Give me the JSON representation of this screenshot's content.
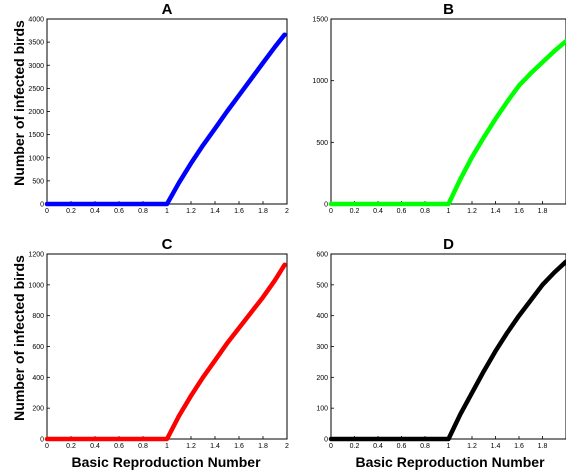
{
  "figure": {
    "ylabel": "Number of infected birds",
    "xlabel": "Basic Reproduction Number"
  },
  "chart_data": [
    {
      "type": "line",
      "title": "A",
      "color": "#0000ff",
      "xlim": [
        0,
        2
      ],
      "ylim": [
        0,
        4000
      ],
      "xticks": [
        "0",
        "0.2",
        "0.4",
        "0.6",
        "0.8",
        "1",
        "1.2",
        "1.4",
        "1.6",
        "1.8",
        "2"
      ],
      "xtick_values": [
        0,
        0.2,
        0.4,
        0.6,
        0.8,
        1,
        1.2,
        1.4,
        1.6,
        1.8,
        2
      ],
      "yticks": [
        "0",
        "500",
        "1000",
        "1500",
        "2000",
        "2500",
        "3000",
        "3500",
        "4000"
      ],
      "ytick_values": [
        0,
        500,
        1000,
        1500,
        2000,
        2500,
        3000,
        3500,
        4000
      ],
      "x": [
        0,
        0.2,
        0.4,
        0.6,
        0.8,
        1.0,
        1.1,
        1.2,
        1.3,
        1.4,
        1.5,
        1.6,
        1.7,
        1.8,
        1.9,
        1.98
      ],
      "y": [
        0,
        0,
        0,
        0,
        0,
        0,
        460,
        880,
        1270,
        1630,
        2000,
        2350,
        2700,
        3050,
        3400,
        3660
      ]
    },
    {
      "type": "line",
      "title": "B",
      "color": "#00ff00",
      "xlim": [
        0,
        2
      ],
      "ylim": [
        0,
        1500
      ],
      "xticks": [
        "0",
        "0.2",
        "0.4",
        "0.6",
        "0.8",
        "1",
        "1.2",
        "1.4",
        "1.6",
        "1.8"
      ],
      "xtick_values": [
        0,
        0.2,
        0.4,
        0.6,
        0.8,
        1,
        1.2,
        1.4,
        1.6,
        1.8
      ],
      "yticks": [
        "0",
        "500",
        "1000",
        "1500"
      ],
      "ytick_values": [
        0,
        500,
        1000,
        1500
      ],
      "x": [
        0,
        0.2,
        0.4,
        0.6,
        0.8,
        1.0,
        1.1,
        1.2,
        1.3,
        1.4,
        1.5,
        1.6,
        1.7,
        1.8,
        1.9,
        2.0
      ],
      "y": [
        0,
        0,
        0,
        0,
        0,
        0,
        200,
        380,
        540,
        690,
        830,
        960,
        1060,
        1150,
        1240,
        1320
      ]
    },
    {
      "type": "line",
      "title": "C",
      "color": "#ff0000",
      "xlim": [
        0,
        2
      ],
      "ylim": [
        0,
        1200
      ],
      "xticks": [
        "0",
        "0.2",
        "0.4",
        "0.6",
        "0.8",
        "1",
        "1.2",
        "1.4",
        "1.6",
        "1.8",
        "2"
      ],
      "xtick_values": [
        0,
        0.2,
        0.4,
        0.6,
        0.8,
        1,
        1.2,
        1.4,
        1.6,
        1.8,
        2
      ],
      "yticks": [
        "0",
        "200",
        "400",
        "600",
        "800",
        "1000",
        "1200"
      ],
      "ytick_values": [
        0,
        200,
        400,
        600,
        800,
        1000,
        1200
      ],
      "x": [
        0,
        0.2,
        0.4,
        0.6,
        0.8,
        1.0,
        1.1,
        1.2,
        1.3,
        1.4,
        1.5,
        1.6,
        1.7,
        1.8,
        1.9,
        1.98
      ],
      "y": [
        0,
        0,
        0,
        0,
        0,
        0,
        150,
        280,
        400,
        510,
        620,
        720,
        820,
        920,
        1030,
        1130
      ]
    },
    {
      "type": "line",
      "title": "D",
      "color": "#000000",
      "xlim": [
        0,
        2
      ],
      "ylim": [
        0,
        600
      ],
      "xticks": [
        "0",
        "0.2",
        "0.4",
        "0.6",
        "0.8",
        "1",
        "1.2",
        "1.4",
        "1.6",
        "1.8"
      ],
      "xtick_values": [
        0,
        0.2,
        0.4,
        0.6,
        0.8,
        1,
        1.2,
        1.4,
        1.6,
        1.8
      ],
      "yticks": [
        "0",
        "100",
        "200",
        "300",
        "400",
        "500",
        "600"
      ],
      "ytick_values": [
        0,
        100,
        200,
        300,
        400,
        500,
        600
      ],
      "x": [
        0,
        0.2,
        0.4,
        0.6,
        0.8,
        1.0,
        1.1,
        1.2,
        1.3,
        1.4,
        1.5,
        1.6,
        1.7,
        1.8,
        1.9,
        2.0
      ],
      "y": [
        0,
        0,
        0,
        0,
        0,
        0,
        80,
        150,
        220,
        285,
        345,
        400,
        450,
        500,
        540,
        575
      ]
    }
  ]
}
